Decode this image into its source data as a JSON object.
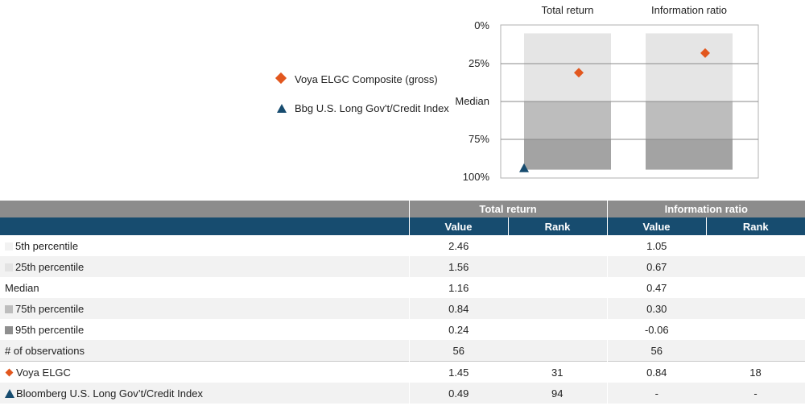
{
  "legend": {
    "series1": "Voya ELGC Composite (gross)",
    "series2": "Bbg U.S. Long Gov't/Credit Index"
  },
  "chart_data": {
    "type": "floating-bar percentile ranking",
    "categories": [
      "Total return",
      "Information ratio"
    ],
    "y_tick_labels": [
      "0%",
      "25%",
      "Median",
      "75%",
      "100%"
    ],
    "y_tick_values": [
      0,
      25,
      50,
      75,
      100
    ],
    "ylim": [
      0,
      100
    ],
    "y_inverted": true,
    "percentile_bands": [
      {
        "from": 5,
        "to": 50,
        "color": "#e5e5e5"
      },
      {
        "from": 50,
        "to": 75,
        "color": "#bdbdbd"
      },
      {
        "from": 75,
        "to": 95,
        "color": "#a3a3a3"
      }
    ],
    "series": [
      {
        "name": "Voya ELGC Composite (gross)",
        "marker": "diamond",
        "color": "#e2571e",
        "values": [
          31,
          18
        ]
      },
      {
        "name": "Bbg U.S. Long Gov't/Credit Index",
        "marker": "triangle",
        "color": "#174c6f",
        "values": [
          94,
          null
        ]
      }
    ]
  },
  "table": {
    "group_headers": [
      "Total return",
      "Information ratio"
    ],
    "sub_headers": [
      "Value",
      "Rank",
      "Value",
      "Rank"
    ],
    "rows": [
      {
        "label": "5th percentile",
        "swatch": "#f2f2f2",
        "tr_value": "2.46",
        "tr_rank": "",
        "ir_value": "1.05",
        "ir_rank": ""
      },
      {
        "label": "25th percentile",
        "swatch": "#e3e3e3",
        "tr_value": "1.56",
        "tr_rank": "",
        "ir_value": "0.67",
        "ir_rank": ""
      },
      {
        "label": "Median",
        "swatch": "",
        "tr_value": "1.16",
        "tr_rank": "",
        "ir_value": "0.47",
        "ir_rank": ""
      },
      {
        "label": "75th percentile",
        "swatch": "#bdbdbd",
        "tr_value": "0.84",
        "tr_rank": "",
        "ir_value": "0.30",
        "ir_rank": ""
      },
      {
        "label": "95th percentile",
        "swatch": "#8f8f8f",
        "tr_value": "0.24",
        "tr_rank": "",
        "ir_value": "-0.06",
        "ir_rank": ""
      },
      {
        "label": "# of observations",
        "swatch": "",
        "tr_value": "56",
        "tr_rank": "",
        "ir_value": "56",
        "ir_rank": ""
      },
      {
        "label": "Voya ELGC",
        "marker": "diamond",
        "tr_value": "1.45",
        "tr_rank": "31",
        "ir_value": "0.84",
        "ir_rank": "18"
      },
      {
        "label": "Bloomberg U.S. Long Gov’t/Credit Index",
        "marker": "triangle",
        "tr_value": "0.49",
        "tr_rank": "94",
        "ir_value": "-",
        "ir_rank": "-"
      }
    ]
  }
}
